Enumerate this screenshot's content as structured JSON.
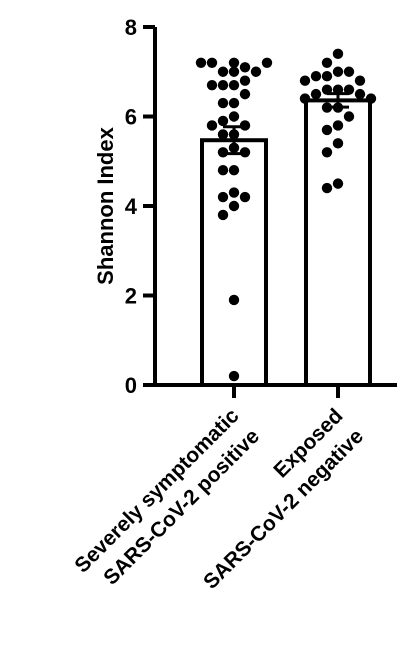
{
  "chart_data": {
    "type": "bar",
    "title": "",
    "xlabel": "",
    "ylabel": "Shannon Index",
    "ylim": [
      0,
      8
    ],
    "yticks": [
      0,
      2,
      4,
      6,
      8
    ],
    "grid": false,
    "categories": [
      {
        "lines": [
          "Severely symptomatic",
          "SARS-CoV-2 positive"
        ]
      },
      {
        "lines": [
          "Exposed",
          "SARS-CoV-2 negative"
        ]
      }
    ],
    "means": [
      5.47,
      6.36
    ],
    "sem": [
      0.3,
      0.15
    ],
    "points": [
      [
        7.2,
        7.0,
        7.1,
        7.2,
        7.0,
        7.2,
        7.2,
        7.0,
        6.8,
        6.7,
        6.7,
        6.7,
        6.5,
        6.3,
        6.3,
        6.0,
        5.9,
        5.8,
        5.8,
        5.6,
        5.6,
        5.3,
        5.2,
        5.2,
        4.8,
        4.8,
        4.3,
        4.2,
        4.0,
        4.2,
        3.8,
        1.9,
        0.2
      ],
      [
        7.4,
        7.2,
        7.0,
        7.0,
        6.9,
        6.9,
        6.8,
        6.8,
        6.6,
        6.6,
        6.6,
        6.5,
        6.5,
        6.4,
        6.4,
        6.2,
        6.2,
        6.0,
        5.8,
        5.7,
        5.4,
        5.2,
        4.5,
        4.4
      ]
    ],
    "bar_color": "#ffffff",
    "edge_color": "#000000",
    "point_color": "#000000"
  }
}
